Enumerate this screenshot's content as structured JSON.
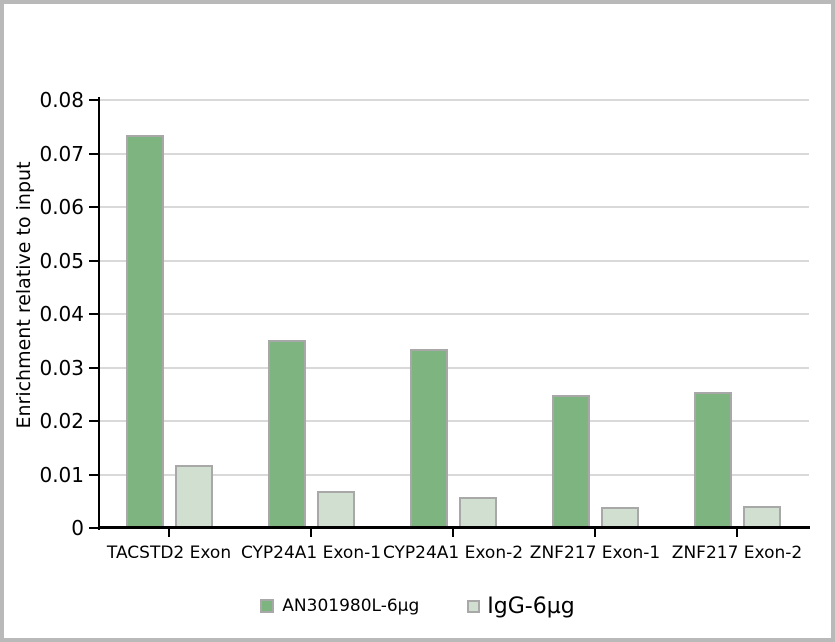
{
  "chart_data": {
    "type": "bar",
    "title": "",
    "categories": [
      "TACSTD2 Exon",
      "CYP24A1 Exon-1",
      "CYP24A1 Exon-2",
      "ZNF217 Exon-1",
      "ZNF217 Exon-2"
    ],
    "series": [
      {
        "name": "AN301980L-6µg",
        "color": "#7db47f",
        "border_color": "#a8a8a8",
        "values": [
          0.0735,
          0.0352,
          0.0335,
          0.0248,
          0.0255
        ]
      },
      {
        "name": "IgG-6µg",
        "color": "#d0dfcf",
        "border_color": "#a8a8a8",
        "values": [
          0.0117,
          0.007,
          0.0058,
          0.0039,
          0.0041
        ]
      }
    ],
    "xlabel": "",
    "ylabel": "Enrichment relative to input",
    "ylim": [
      0,
      0.08
    ],
    "ytick_step": 0.01,
    "ytick_labels": [
      "0",
      "0.01",
      "0.02",
      "0.03",
      "0.04",
      "0.05",
      "0.06",
      "0.07",
      "0.08"
    ],
    "grid": true,
    "gridline_color": "#d9d9d9",
    "axis_color": "#000000",
    "legend_position": "bottom"
  }
}
